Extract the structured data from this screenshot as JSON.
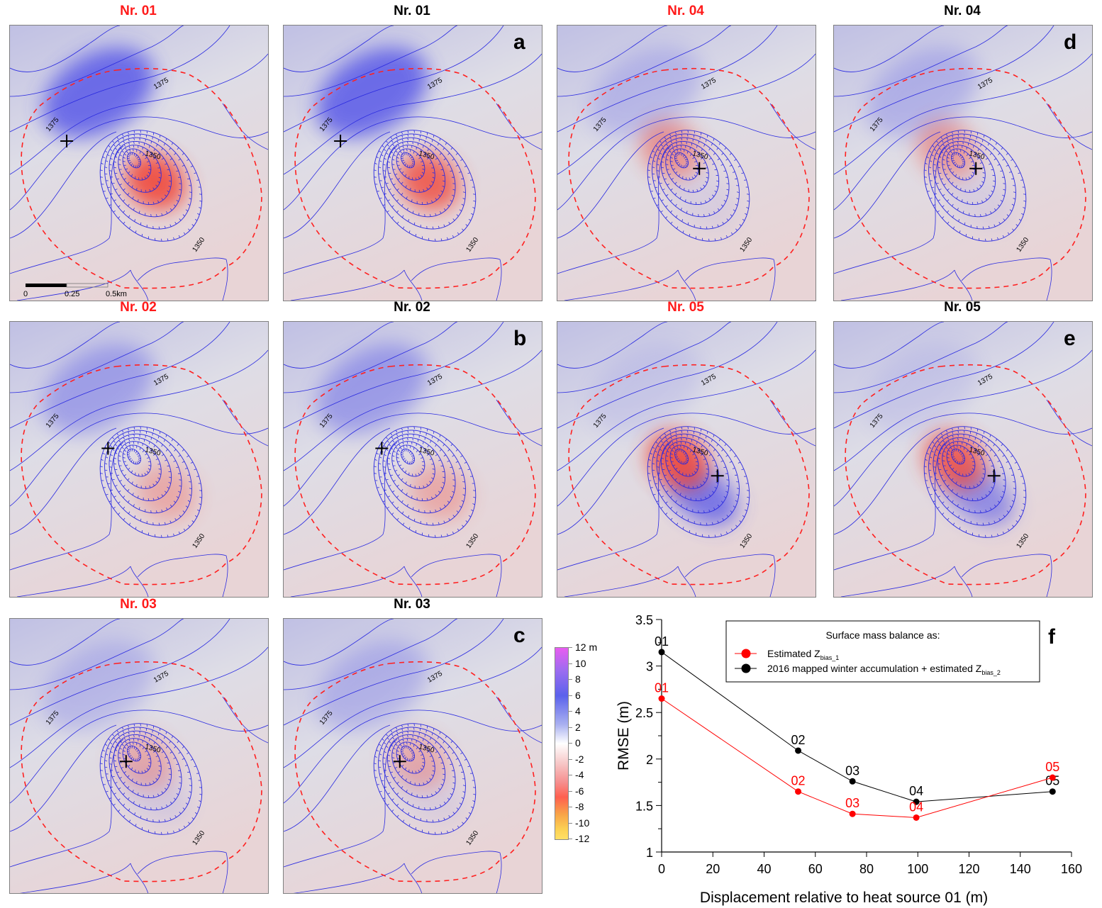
{
  "figure": {
    "panels": [
      {
        "title": "Nr. 01",
        "title_color": "red",
        "letter": "",
        "source": "01",
        "blob_red": 1.0,
        "blob_blue_nw": 1.0,
        "blob_blue_se": 0.0,
        "cross_dx": -0.28,
        "cross_dy": -0.08,
        "scalebar": true
      },
      {
        "title": "Nr. 01",
        "title_color": "black",
        "letter": "a",
        "source": "01",
        "blob_red": 0.9,
        "blob_blue_nw": 1.0,
        "blob_blue_se": 0.0,
        "cross_dx": -0.28,
        "cross_dy": -0.08,
        "scalebar": false
      },
      {
        "title": "Nr. 04",
        "title_color": "red",
        "letter": "",
        "source": "04",
        "blob_red": 0.55,
        "blob_blue_nw": 0.3,
        "blob_blue_se": 0.1,
        "cross_dx": 0.05,
        "cross_dy": 0.02,
        "scalebar": false
      },
      {
        "title": "Nr. 04",
        "title_color": "black",
        "letter": "d",
        "source": "04",
        "blob_red": 0.5,
        "blob_blue_nw": 0.35,
        "blob_blue_se": 0.1,
        "cross_dx": 0.05,
        "cross_dy": 0.02,
        "scalebar": false
      },
      {
        "title": "Nr. 02",
        "title_color": "red",
        "letter": "",
        "source": "02",
        "blob_red": 0.35,
        "blob_blue_nw": 0.5,
        "blob_blue_se": 0.0,
        "cross_dx": -0.12,
        "cross_dy": -0.04,
        "scalebar": false
      },
      {
        "title": "Nr. 02",
        "title_color": "black",
        "letter": "b",
        "source": "02",
        "blob_red": 0.35,
        "blob_blue_nw": 0.55,
        "blob_blue_se": 0.0,
        "cross_dx": -0.12,
        "cross_dy": -0.04,
        "scalebar": false
      },
      {
        "title": "Nr. 05",
        "title_color": "red",
        "letter": "",
        "source": "05",
        "blob_red": 1.0,
        "blob_blue_nw": 0.15,
        "blob_blue_se": 0.9,
        "cross_dx": 0.12,
        "cross_dy": 0.06,
        "scalebar": false
      },
      {
        "title": "Nr. 05",
        "title_color": "black",
        "letter": "e",
        "source": "05",
        "blob_red": 0.9,
        "blob_blue_nw": 0.15,
        "blob_blue_se": 0.7,
        "cross_dx": 0.12,
        "cross_dy": 0.06,
        "scalebar": false
      },
      {
        "title": "Nr. 03",
        "title_color": "red",
        "letter": "",
        "source": "03",
        "blob_red": 0.35,
        "blob_blue_nw": 0.3,
        "blob_blue_se": 0.15,
        "cross_dx": -0.05,
        "cross_dy": 0.02,
        "scalebar": false
      },
      {
        "title": "Nr. 03",
        "title_color": "black",
        "letter": "c",
        "source": "03",
        "blob_red": 0.35,
        "blob_blue_nw": 0.35,
        "blob_blue_se": 0.1,
        "cross_dx": -0.05,
        "cross_dy": 0.02,
        "scalebar": false
      }
    ],
    "contour_labels": {
      "upper": "1375",
      "inner": "1350"
    },
    "scalebar": {
      "labels": [
        "0",
        "0.25",
        "0.5km"
      ]
    },
    "colorbar": {
      "unit": "m",
      "ticks": [
        "12 m",
        "10",
        "8",
        "6",
        "4",
        "2",
        "0",
        "-2",
        "-4",
        "-6",
        "-8",
        "-10",
        "-12"
      ],
      "range": [
        -12,
        12
      ]
    },
    "colors": {
      "accent_red": "#ff1a1a",
      "contour_blue": "#2a2ae0",
      "positive_blue": "#4a4ae8",
      "negative_red": "#f04030",
      "circle_red": "#ff2020"
    }
  },
  "chart_data": {
    "type": "line",
    "panel_letter": "f",
    "title": "",
    "xlabel": "Displacement relative to heat source 01 (m)",
    "ylabel": "RMSE (m)",
    "xlim": [
      0,
      160
    ],
    "ylim": [
      1,
      3.5
    ],
    "xticks": [
      0,
      20,
      40,
      60,
      80,
      100,
      120,
      140,
      160
    ],
    "yticks": [
      1,
      1.5,
      2,
      2.5,
      3,
      3.5
    ],
    "ytick_labels": [
      "1",
      "1.5",
      "2",
      "2.5",
      "3",
      "3.5"
    ],
    "grid": false,
    "legend": {
      "position": "top-right",
      "title": "Surface mass balance as:",
      "entries": [
        {
          "text": "Estimated Z",
          "sub": "bias_1",
          "color": "#ff0000"
        },
        {
          "text": "2016 mapped winter accumulation + estimated Z",
          "sub": "bias_2",
          "color": "#000000"
        }
      ]
    },
    "series": [
      {
        "name": "Estimated Z_bias_1",
        "color": "#ff0000",
        "x": [
          0,
          53.3,
          74.5,
          99.4,
          152.6
        ],
        "y": [
          2.65,
          1.65,
          1.41,
          1.37,
          1.8
        ],
        "point_labels": [
          "01",
          "02",
          "03",
          "04",
          "05"
        ]
      },
      {
        "name": "2016 mapped winter accumulation + estimated Z_bias_2",
        "color": "#000000",
        "x": [
          0,
          53.3,
          74.5,
          99.4,
          152.6
        ],
        "y": [
          3.15,
          2.09,
          1.76,
          1.54,
          1.65
        ],
        "point_labels": [
          "01",
          "02",
          "03",
          "04",
          "05"
        ]
      }
    ]
  }
}
